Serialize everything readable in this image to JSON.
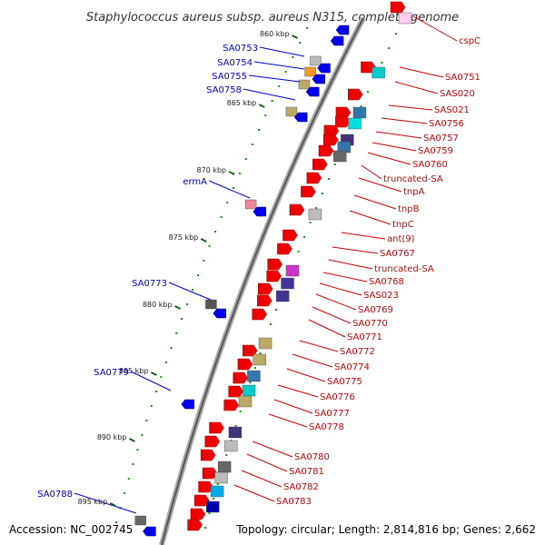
{
  "title": "Staphylococcus aureus subsp. aureus N315, complete genome",
  "accession": "Accession: NC_002745",
  "summary": "Topology: circular; Length: 2,814,816 bp; Genes: 2,662",
  "colors": {
    "forward_label": "#cc0000",
    "reverse_label": "#0000cc",
    "forward_gene": "#ee0000",
    "reverse_gene": "#0000ee",
    "backbone": "#888888",
    "tick": "#116611",
    "dots": "#119911"
  },
  "ticks": [
    {
      "label": "860 kbp"
    },
    {
      "label": "865 kbp"
    },
    {
      "label": "870 kbp"
    },
    {
      "label": "875 kbp"
    },
    {
      "label": "880 kbp"
    },
    {
      "label": "885 kbp"
    },
    {
      "label": "890 kbp"
    },
    {
      "label": "895 kbp"
    }
  ],
  "reverse_labels": [
    {
      "text": "SA0753"
    },
    {
      "text": "SA0754"
    },
    {
      "text": "SA0755"
    },
    {
      "text": "SA0758"
    },
    {
      "text": "ermA"
    },
    {
      "text": "SA0773"
    },
    {
      "text": "SA0779"
    },
    {
      "text": "SA0788"
    }
  ],
  "forward_labels": [
    {
      "text": "cspC"
    },
    {
      "text": "SA0751"
    },
    {
      "text": "SAS020"
    },
    {
      "text": "SAS021"
    },
    {
      "text": "SA0756"
    },
    {
      "text": "SA0757"
    },
    {
      "text": "SA0759"
    },
    {
      "text": "SA0760"
    },
    {
      "text": "truncated-SA"
    },
    {
      "text": "tnpA"
    },
    {
      "text": "tnpB"
    },
    {
      "text": "tnpC"
    },
    {
      "text": "ant(9)"
    },
    {
      "text": "SA0767"
    },
    {
      "text": "truncated-SA"
    },
    {
      "text": "SA0768"
    },
    {
      "text": "SAS023"
    },
    {
      "text": "SA0769"
    },
    {
      "text": "SA0770"
    },
    {
      "text": "SA0771"
    },
    {
      "text": "SA0772"
    },
    {
      "text": "SA0774"
    },
    {
      "text": "SA0775"
    },
    {
      "text": "SA0776"
    },
    {
      "text": "SA0777"
    },
    {
      "text": "SA0778"
    },
    {
      "text": "SA0780"
    },
    {
      "text": "SA0781"
    },
    {
      "text": "SA0782"
    },
    {
      "text": "SA0783"
    }
  ]
}
